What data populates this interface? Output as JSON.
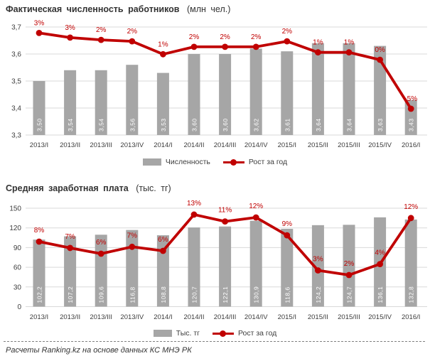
{
  "page": {
    "footer": "Расчеты Ranking.kz на основе данных КС МНЭ РК"
  },
  "colors": {
    "bar": "#A6A6A6",
    "line": "#C00000",
    "grid": "#D9D9D9",
    "axis_text": "#404040",
    "bar_label": "#FFFFFF"
  },
  "chart_data": [
    {
      "type": "combo-bar-line",
      "title": "Фактическая численность работников",
      "unit": "(млн чел.)",
      "categories": [
        "2013/I",
        "2013/II",
        "2013/III",
        "2013/IV",
        "2014/I",
        "2014/II",
        "2014/III",
        "2014/IV",
        "2015/I",
        "2015/II",
        "2015/III",
        "2015/IV",
        "2016/I"
      ],
      "series": [
        {
          "name": "Численность",
          "kind": "bar",
          "values": [
            3.5,
            3.54,
            3.54,
            3.56,
            3.53,
            3.6,
            3.6,
            3.62,
            3.61,
            3.64,
            3.64,
            3.63,
            3.43
          ],
          "labels": [
            "3,50",
            "3,54",
            "3,54",
            "3,56",
            "3,53",
            "3,60",
            "3,60",
            "3,62",
            "3,61",
            "3,64",
            "3,64",
            "3,63",
            "3,43"
          ]
        },
        {
          "name": "Рост за год",
          "kind": "line",
          "labels": [
            "3%",
            "3%",
            "2%",
            "2%",
            "1%",
            "2%",
            "2%",
            "2%",
            "2%",
            "1%",
            "1%",
            "0%",
            "-5%"
          ],
          "values": [
            3.2,
            2.7,
            2.45,
            2.3,
            0.9,
            1.7,
            1.7,
            1.7,
            2.3,
            1.1,
            1.1,
            0.3,
            -5.0
          ]
        }
      ],
      "y_axis": {
        "min": 3.3,
        "max": 3.7,
        "tick_labels": [
          "3,7",
          "3,6",
          "3,5",
          "3,4",
          "3,3"
        ]
      },
      "legend_position": "bottom",
      "grid": true
    },
    {
      "type": "combo-bar-line",
      "title": "Средняя заработная плата",
      "unit": "(тыс. тг)",
      "categories": [
        "2013/I",
        "2013/II",
        "2013/III",
        "2013/IV",
        "2014/I",
        "2014/II",
        "2014/III",
        "2014/IV",
        "2015/I",
        "2015/II",
        "2015/III",
        "2015/IV",
        "2016/I"
      ],
      "series": [
        {
          "name": "Тыс. тг",
          "kind": "bar",
          "values": [
            102.2,
            107.2,
            109.6,
            116.8,
            108.8,
            120.7,
            122.1,
            130.9,
            118.6,
            124.2,
            124.7,
            136.1,
            132.8
          ],
          "labels": [
            "102,2",
            "107,2",
            "109,6",
            "116,8",
            "108,8",
            "120,7",
            "122,1",
            "130,9",
            "118,6",
            "124,2",
            "124,7",
            "136,1",
            "132,8"
          ]
        },
        {
          "name": "Рост за год",
          "kind": "line",
          "labels": [
            "8%",
            "7%",
            "6%",
            "7%",
            "6%",
            "13%",
            "11%",
            "12%",
            "9%",
            "3%",
            "2%",
            "4%",
            "12%"
          ],
          "values": [
            7.9,
            6.8,
            5.8,
            7.0,
            6.3,
            12.6,
            11.4,
            12.1,
            9.0,
            2.9,
            2.1,
            4.0,
            12.0
          ]
        }
      ],
      "y_axis": {
        "min": 0,
        "max": 150,
        "tick_labels": [
          "150",
          "120",
          "90",
          "60",
          "30",
          "0"
        ]
      },
      "legend_position": "bottom",
      "grid": true
    }
  ]
}
